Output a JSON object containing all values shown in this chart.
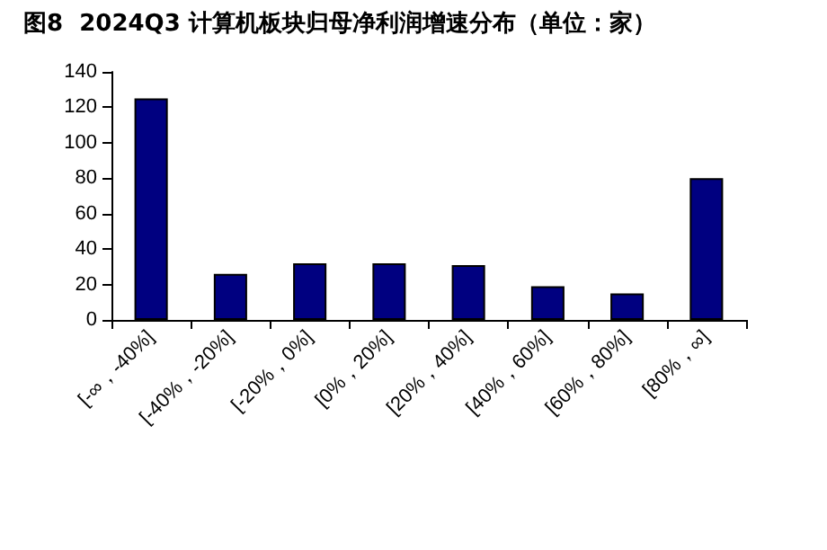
{
  "chart_data": {
    "type": "bar",
    "title": "图8  2024Q3 计算机板块归母净利润增速分布（单位：家）",
    "categories": [
      "[-∞，-40%]",
      "[-40%，-20%]",
      "[-20%，0%]",
      "[0%，20%]",
      "[20%，40%]",
      "[40%，60%]",
      "[60%，80%]",
      "[80%，∞]"
    ],
    "values": [
      125,
      26,
      32,
      32,
      31,
      19,
      15,
      80
    ],
    "color": "#000080",
    "ylim": [
      0,
      140
    ],
    "yticks": [
      0,
      20,
      40,
      60,
      80,
      100,
      120,
      140
    ],
    "grid": false
  }
}
